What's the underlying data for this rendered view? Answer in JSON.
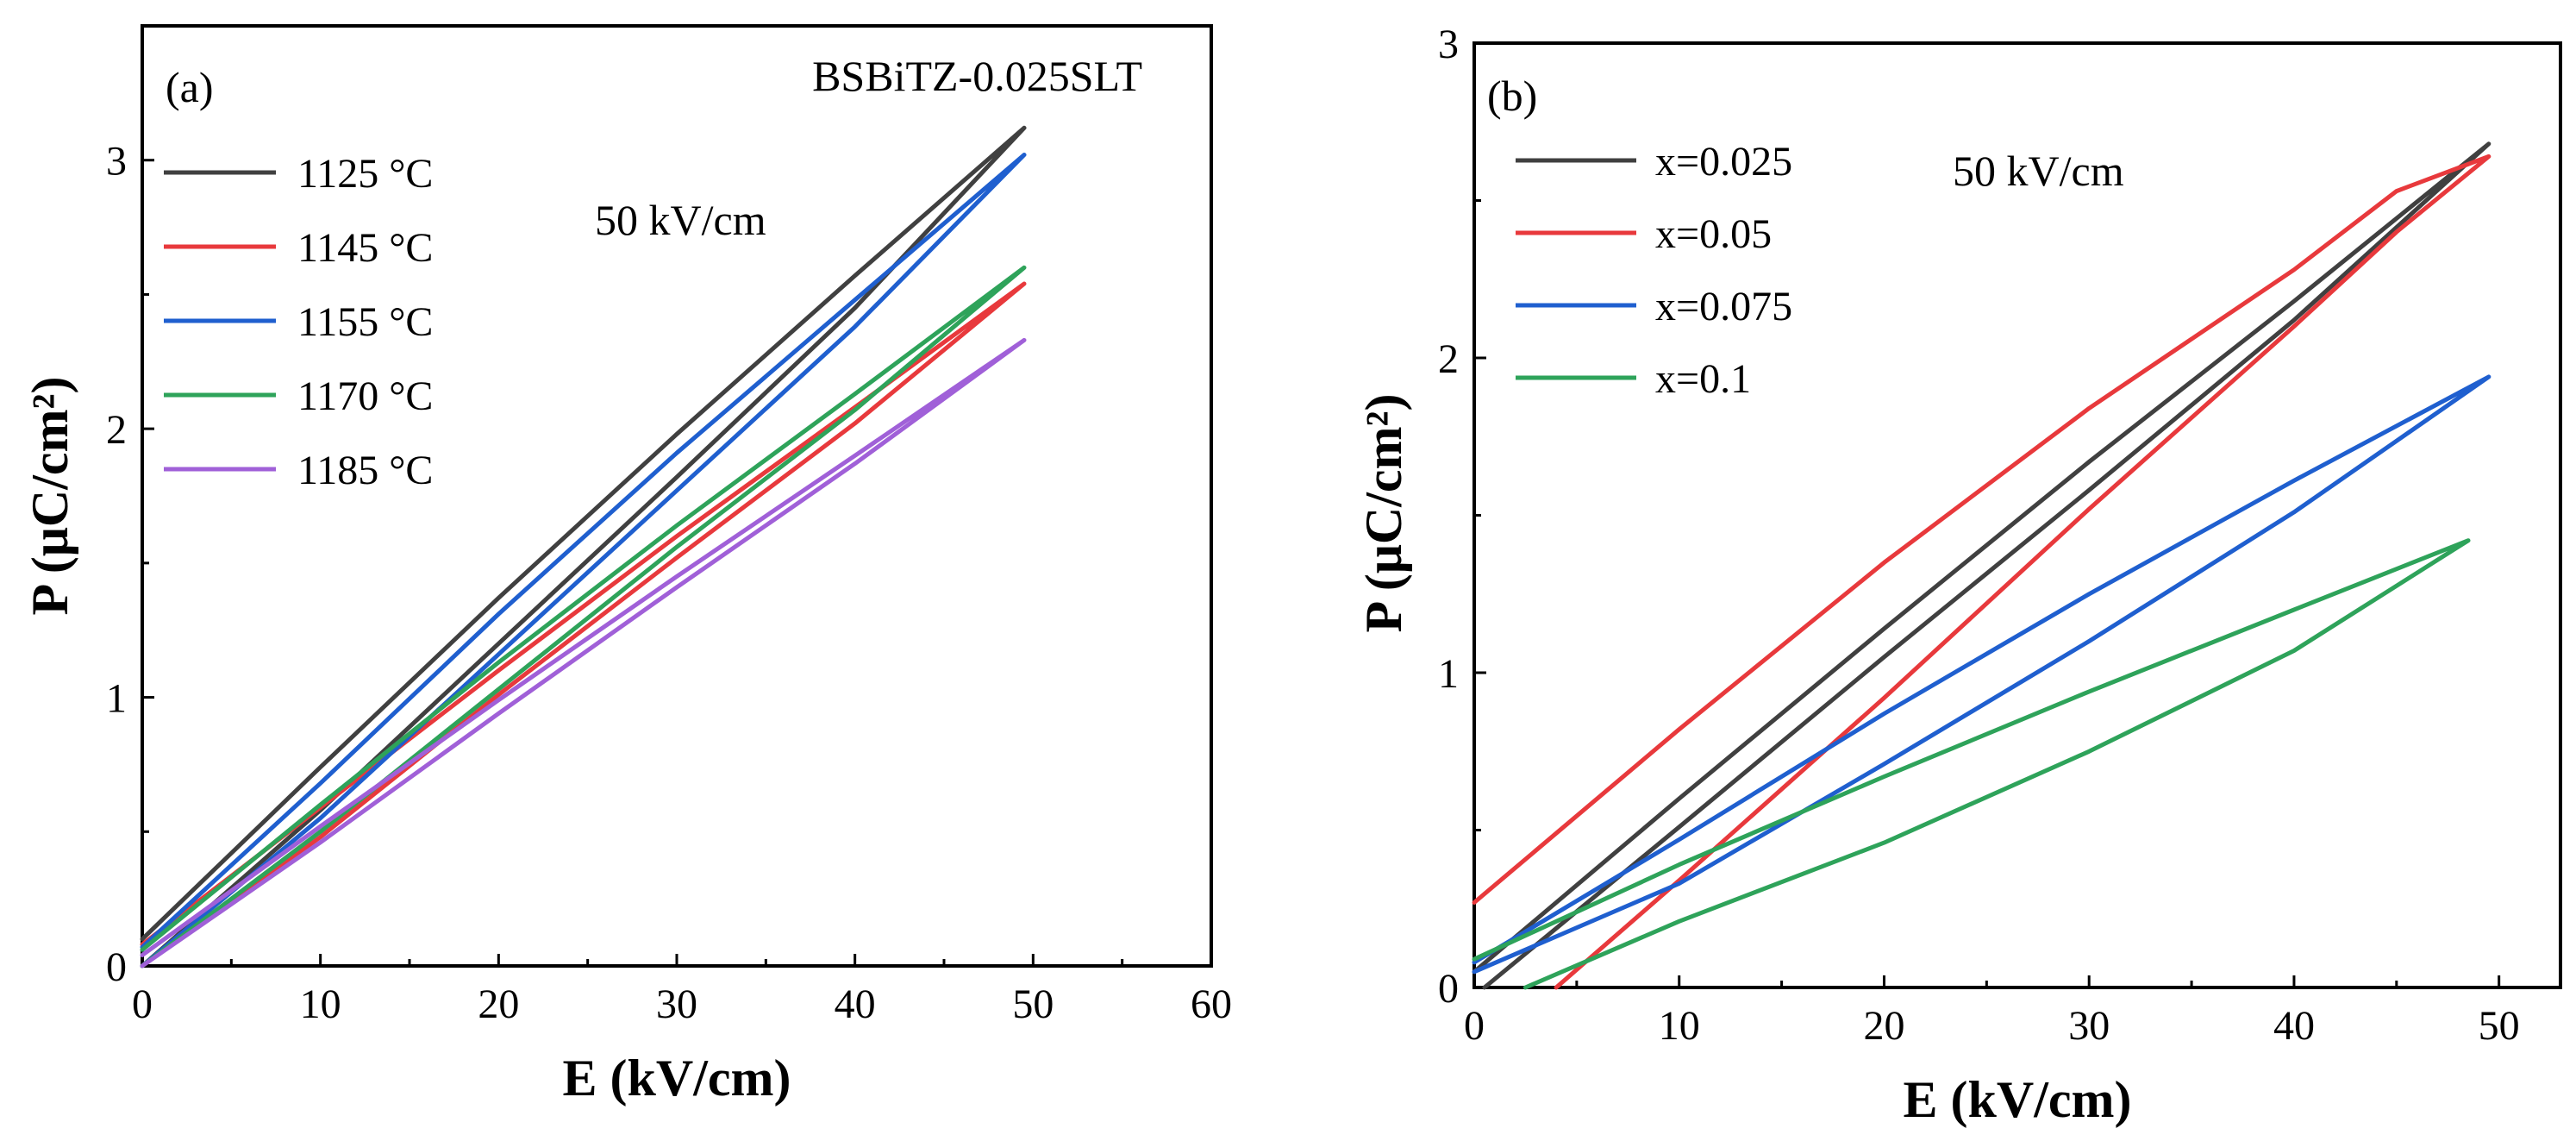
{
  "chart_data": [
    {
      "type": "line",
      "panel_label": "(a)",
      "title": "BSBiTZ-0.025SLT",
      "annotation": "50 kV/cm",
      "xlabel": "E (kV/cm)",
      "ylabel": "P (μC/cm²)",
      "xlim": [
        0,
        60
      ],
      "ylim": [
        0,
        3.5
      ],
      "xticks": [
        0,
        10,
        20,
        30,
        40,
        50,
        60
      ],
      "yticks": [
        0,
        1,
        2,
        3
      ],
      "grid": false,
      "legend_position": "top-left",
      "series": [
        {
          "name": "1125 °C",
          "color": "#404040",
          "upper": [
            [
              0,
              0.1
            ],
            [
              10,
              0.74
            ],
            [
              20,
              1.37
            ],
            [
              30,
              1.98
            ],
            [
              40,
              2.57
            ],
            [
              49.5,
              3.12
            ]
          ],
          "lower": [
            [
              0,
              0.0
            ],
            [
              10,
              0.58
            ],
            [
              20,
              1.2
            ],
            [
              30,
              1.82
            ],
            [
              40,
              2.45
            ],
            [
              49.5,
              3.12
            ]
          ]
        },
        {
          "name": "1145 °C",
          "color": "#e8393c",
          "upper": [
            [
              0,
              0.08
            ],
            [
              10,
              0.59
            ],
            [
              20,
              1.1
            ],
            [
              30,
              1.6
            ],
            [
              40,
              2.08
            ],
            [
              49.5,
              2.54
            ]
          ],
          "lower": [
            [
              0,
              0.0
            ],
            [
              10,
              0.48
            ],
            [
              20,
              1.01
            ],
            [
              30,
              1.52
            ],
            [
              40,
              2.02
            ],
            [
              49.5,
              2.54
            ]
          ]
        },
        {
          "name": "1155 °C",
          "color": "#1f5fcf",
          "upper": [
            [
              0,
              0.07
            ],
            [
              10,
              0.68
            ],
            [
              20,
              1.31
            ],
            [
              30,
              1.91
            ],
            [
              40,
              2.48
            ],
            [
              49.5,
              3.02
            ]
          ],
          "lower": [
            [
              0,
              0.0
            ],
            [
              10,
              0.55
            ],
            [
              20,
              1.16
            ],
            [
              30,
              1.77
            ],
            [
              40,
              2.38
            ],
            [
              49.5,
              3.02
            ]
          ]
        },
        {
          "name": "1170 °C",
          "color": "#2ea35a",
          "upper": [
            [
              0,
              0.06
            ],
            [
              10,
              0.6
            ],
            [
              20,
              1.13
            ],
            [
              30,
              1.64
            ],
            [
              40,
              2.13
            ],
            [
              49.5,
              2.6
            ]
          ],
          "lower": [
            [
              0,
              0.0
            ],
            [
              10,
              0.5
            ],
            [
              20,
              1.03
            ],
            [
              30,
              1.56
            ],
            [
              40,
              2.07
            ],
            [
              49.5,
              2.6
            ]
          ]
        },
        {
          "name": "1185 °C",
          "color": "#a060d8",
          "upper": [
            [
              0,
              0.04
            ],
            [
              10,
              0.52
            ],
            [
              20,
              0.99
            ],
            [
              30,
              1.45
            ],
            [
              40,
              1.9
            ],
            [
              49.5,
              2.33
            ]
          ],
          "lower": [
            [
              0,
              0.0
            ],
            [
              10,
              0.46
            ],
            [
              20,
              0.94
            ],
            [
              30,
              1.41
            ],
            [
              40,
              1.87
            ],
            [
              49.5,
              2.33
            ]
          ]
        }
      ]
    },
    {
      "type": "line",
      "panel_label": "(b)",
      "title": "",
      "annotation": "50 kV/cm",
      "xlabel": "E (kV/cm)",
      "ylabel": "P (μC/cm²)",
      "xlim": [
        0,
        53
      ],
      "ylim": [
        0,
        3
      ],
      "xticks": [
        0,
        10,
        20,
        30,
        40,
        50
      ],
      "yticks": [
        0,
        1,
        2,
        3
      ],
      "grid": false,
      "legend_position": "top-left",
      "series": [
        {
          "name": "x=0.025",
          "color": "#404040",
          "upper": [
            [
              0,
              0.05
            ],
            [
              10,
              0.6
            ],
            [
              20,
              1.14
            ],
            [
              30,
              1.67
            ],
            [
              40,
              2.18
            ],
            [
              49.5,
              2.68
            ]
          ],
          "lower": [
            [
              0.5,
              0.0
            ],
            [
              10,
              0.51
            ],
            [
              20,
              1.05
            ],
            [
              30,
              1.58
            ],
            [
              40,
              2.12
            ],
            [
              49.5,
              2.68
            ]
          ]
        },
        {
          "name": "x=0.05",
          "color": "#e8393c",
          "upper": [
            [
              0,
              0.27
            ],
            [
              10,
              0.82
            ],
            [
              20,
              1.35
            ],
            [
              30,
              1.84
            ],
            [
              40,
              2.28
            ],
            [
              45,
              2.53
            ],
            [
              49.5,
              2.64
            ]
          ],
          "lower": [
            [
              4,
              0.0
            ],
            [
              10,
              0.34
            ],
            [
              20,
              0.92
            ],
            [
              30,
              1.52
            ],
            [
              40,
              2.1
            ],
            [
              45,
              2.4
            ],
            [
              49.5,
              2.64
            ]
          ]
        },
        {
          "name": "x=0.075",
          "color": "#1f5fcf",
          "upper": [
            [
              0,
              0.08
            ],
            [
              10,
              0.47
            ],
            [
              20,
              0.87
            ],
            [
              30,
              1.25
            ],
            [
              40,
              1.61
            ],
            [
              49.5,
              1.94
            ]
          ],
          "lower": [
            [
              0,
              0.05
            ],
            [
              10,
              0.33
            ],
            [
              20,
              0.71
            ],
            [
              30,
              1.1
            ],
            [
              40,
              1.51
            ],
            [
              49.5,
              1.94
            ]
          ]
        },
        {
          "name": "x=0.1",
          "color": "#2ea35a",
          "upper": [
            [
              0,
              0.09
            ],
            [
              10,
              0.39
            ],
            [
              20,
              0.67
            ],
            [
              30,
              0.94
            ],
            [
              40,
              1.2
            ],
            [
              48.5,
              1.42
            ]
          ],
          "lower": [
            [
              2.5,
              0.0
            ],
            [
              10,
              0.21
            ],
            [
              20,
              0.46
            ],
            [
              30,
              0.75
            ],
            [
              40,
              1.07
            ],
            [
              48.5,
              1.42
            ]
          ]
        }
      ]
    }
  ]
}
